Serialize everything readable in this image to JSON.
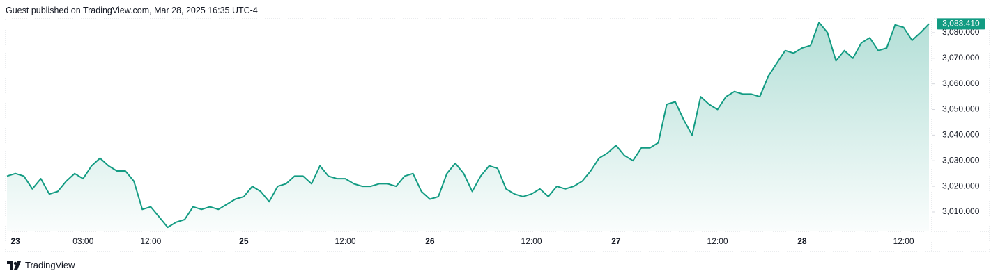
{
  "header": {
    "text": "Guest published on TradingView.com, Mar 28, 2025 16:35 UTC-4"
  },
  "footer": {
    "brand": "TradingView"
  },
  "chart_data": {
    "type": "line",
    "color": "#129b82",
    "grid": false,
    "categories": [
      null,
      "23",
      null,
      null,
      null,
      null,
      null,
      null,
      null,
      "03:00",
      null,
      null,
      null,
      null,
      null,
      null,
      null,
      "12:00",
      null,
      null,
      null,
      null,
      null,
      null,
      null,
      null,
      null,
      null,
      "25",
      null,
      null,
      null,
      null,
      null,
      null,
      null,
      null,
      null,
      null,
      null,
      "12:00",
      null,
      null,
      null,
      null,
      null,
      null,
      null,
      null,
      null,
      "26",
      null,
      null,
      null,
      null,
      null,
      null,
      null,
      null,
      null,
      null,
      null,
      "12:00",
      null,
      null,
      null,
      null,
      null,
      null,
      null,
      null,
      null,
      "27",
      null,
      null,
      null,
      null,
      null,
      null,
      null,
      null,
      null,
      null,
      null,
      "12:00",
      null,
      null,
      null,
      null,
      null,
      null,
      null,
      null,
      null,
      "28",
      null,
      null,
      null,
      null,
      null,
      null,
      null,
      null,
      null,
      null,
      null,
      "12:00",
      null,
      null,
      null
    ],
    "values": [
      3024,
      3025,
      3024,
      3019,
      3023,
      3017,
      3018,
      3022,
      3025,
      3023,
      3028,
      3031,
      3028,
      3026,
      3026,
      3022,
      3011,
      3012,
      3008,
      3004,
      3006,
      3007,
      3012,
      3011,
      3012,
      3011,
      3013,
      3015,
      3016,
      3020,
      3018,
      3014,
      3020,
      3021,
      3024,
      3024,
      3021,
      3028,
      3024,
      3023,
      3023,
      3021,
      3020,
      3020,
      3021,
      3021,
      3020,
      3024,
      3025,
      3018,
      3015,
      3016,
      3025,
      3029,
      3025,
      3018,
      3024,
      3028,
      3027,
      3019,
      3017,
      3016,
      3017,
      3019,
      3016,
      3020,
      3019,
      3020,
      3022,
      3026,
      3031,
      3033,
      3036,
      3032,
      3030,
      3035,
      3035,
      3037,
      3052,
      3053,
      3046,
      3040,
      3055,
      3052,
      3050,
      3055,
      3057,
      3056,
      3056,
      3055,
      3063,
      3068,
      3073,
      3072,
      3074,
      3075,
      3084,
      3080,
      3069,
      3073,
      3070,
      3076,
      3078,
      3073,
      3074,
      3083,
      3082,
      3077,
      3080,
      3083.41
    ],
    "ylim": [
      3002.4,
      3085.4
    ],
    "yticks": [
      {
        "value": 3010,
        "label": "3,010.000"
      },
      {
        "value": 3020,
        "label": "3,020.000"
      },
      {
        "value": 3030,
        "label": "3,030.000"
      },
      {
        "value": 3040,
        "label": "3,040.000"
      },
      {
        "value": 3050,
        "label": "3,050.000"
      },
      {
        "value": 3060,
        "label": "3,060.000"
      },
      {
        "value": 3070,
        "label": "3,070.000"
      },
      {
        "value": 3080,
        "label": "3,080.000"
      }
    ],
    "last_price": {
      "value": 3083.41,
      "label": "3,083.410"
    }
  }
}
